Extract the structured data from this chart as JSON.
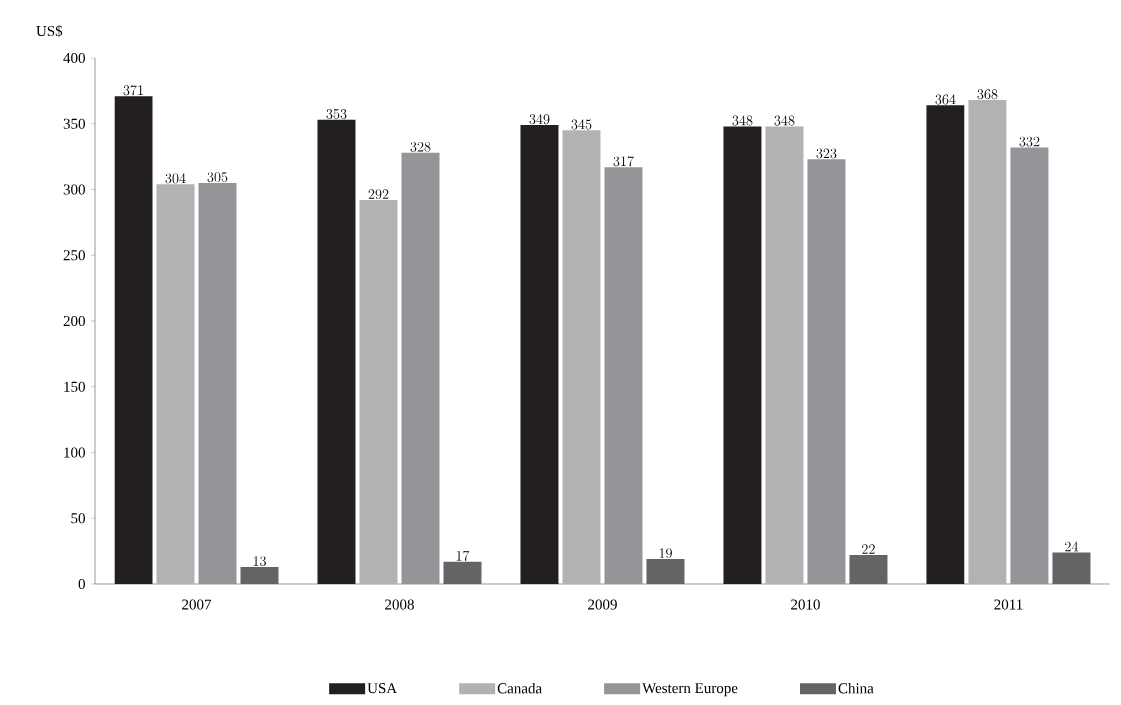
{
  "chart_data": {
    "type": "bar",
    "ylabel": "US$",
    "categories": [
      "2007",
      "2008",
      "2009",
      "2010",
      "2011"
    ],
    "series": [
      {
        "name": "USA",
        "color": "#231f20",
        "values": [
          371,
          353,
          349,
          348,
          364
        ]
      },
      {
        "name": "Canada",
        "color": "#b1b2b4",
        "values": [
          304,
          292,
          345,
          348,
          368
        ]
      },
      {
        "name": "Western Europe",
        "color": "#939598",
        "values": [
          305,
          328,
          317,
          323,
          332
        ]
      },
      {
        "name": "China",
        "color": "#636466",
        "values": [
          13,
          17,
          19,
          22,
          24
        ]
      }
    ],
    "ylim": [
      0,
      400
    ],
    "yticks": [
      0,
      50,
      100,
      150,
      200,
      250,
      300,
      350,
      400
    ],
    "data_labels": true,
    "legend": "bottom"
  }
}
